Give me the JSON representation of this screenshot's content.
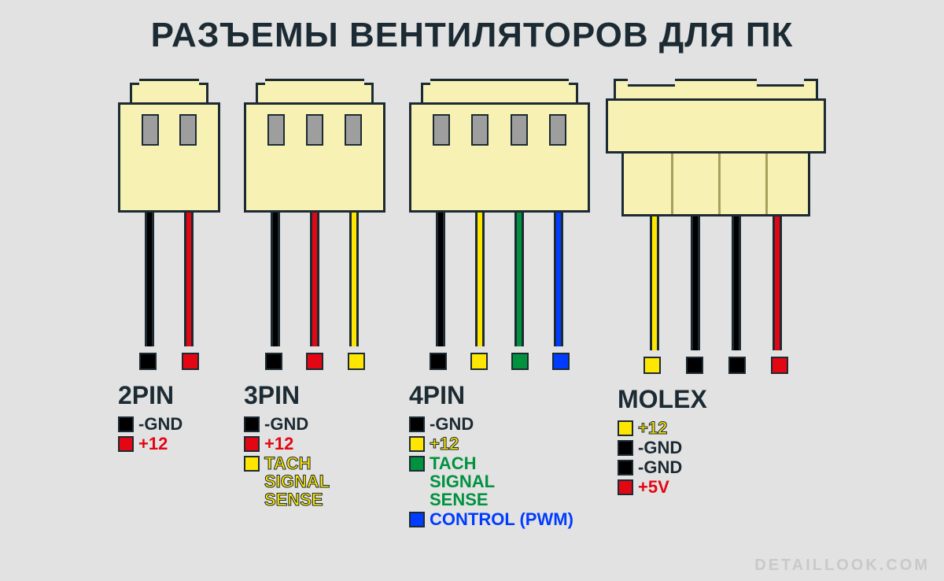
{
  "title": "РАЗЪЕМЫ ВЕНТИЛЯТОРОВ ДЛЯ ПК",
  "watermark": "DETAILLOOK.COM",
  "colors": {
    "bg": "#e2e2e2",
    "connector_fill": "#f7f1b3",
    "outline": "#1c2b33",
    "pin_slot": "#9e9e9e",
    "black": "#000000",
    "red": "#e30613",
    "yellow": "#ffe600",
    "green": "#00923f",
    "blue": "#003cff"
  },
  "connectors": [
    {
      "name": "2PIN",
      "pin_count": 2,
      "header_top_w": 100,
      "header_bot_w": 130,
      "wires": [
        {
          "color": "#000000"
        },
        {
          "color": "#e30613"
        }
      ],
      "legend": [
        {
          "sq": "#000000",
          "text": "-GND",
          "text_color": "#1c2b33"
        },
        {
          "sq": "#e30613",
          "text": "+12",
          "text_color": "#e30613"
        }
      ]
    },
    {
      "name": "3PIN",
      "pin_count": 3,
      "header_top_w": 150,
      "header_bot_w": 180,
      "wires": [
        {
          "color": "#000000"
        },
        {
          "color": "#e30613"
        },
        {
          "color": "#ffe600"
        }
      ],
      "legend": [
        {
          "sq": "#000000",
          "text": "-GND",
          "text_color": "#1c2b33"
        },
        {
          "sq": "#e30613",
          "text": "+12",
          "text_color": "#e30613"
        },
        {
          "sq": "#ffe600",
          "text": "TACH\nSIGNAL\nSENSE",
          "text_color": "#ffe600",
          "stroke": true
        }
      ]
    },
    {
      "name": "4PIN",
      "pin_count": 4,
      "header_top_w": 200,
      "header_bot_w": 230,
      "wires": [
        {
          "color": "#000000"
        },
        {
          "color": "#ffe600"
        },
        {
          "color": "#00923f"
        },
        {
          "color": "#003cff"
        }
      ],
      "legend": [
        {
          "sq": "#000000",
          "text": "-GND",
          "text_color": "#1c2b33"
        },
        {
          "sq": "#ffe600",
          "text": "+12",
          "text_color": "#ffe600",
          "stroke": true
        },
        {
          "sq": "#00923f",
          "text": "TACH\nSIGNAL\nSENSE",
          "text_color": "#00923f"
        },
        {
          "sq": "#003cff",
          "text": "CONTROL (PWM)",
          "text_color": "#003cff"
        }
      ]
    },
    {
      "name": "MOLEX",
      "type": "molex",
      "wires": [
        {
          "color": "#ffe600"
        },
        {
          "color": "#000000"
        },
        {
          "color": "#000000"
        },
        {
          "color": "#e30613"
        }
      ],
      "legend": [
        {
          "sq": "#ffe600",
          "text": "+12",
          "text_color": "#ffe600",
          "stroke": true
        },
        {
          "sq": "#000000",
          "text": "-GND",
          "text_color": "#1c2b33"
        },
        {
          "sq": "#000000",
          "text": "-GND",
          "text_color": "#1c2b33"
        },
        {
          "sq": "#e30613",
          "text": "+5V",
          "text_color": "#e30613"
        }
      ]
    }
  ]
}
